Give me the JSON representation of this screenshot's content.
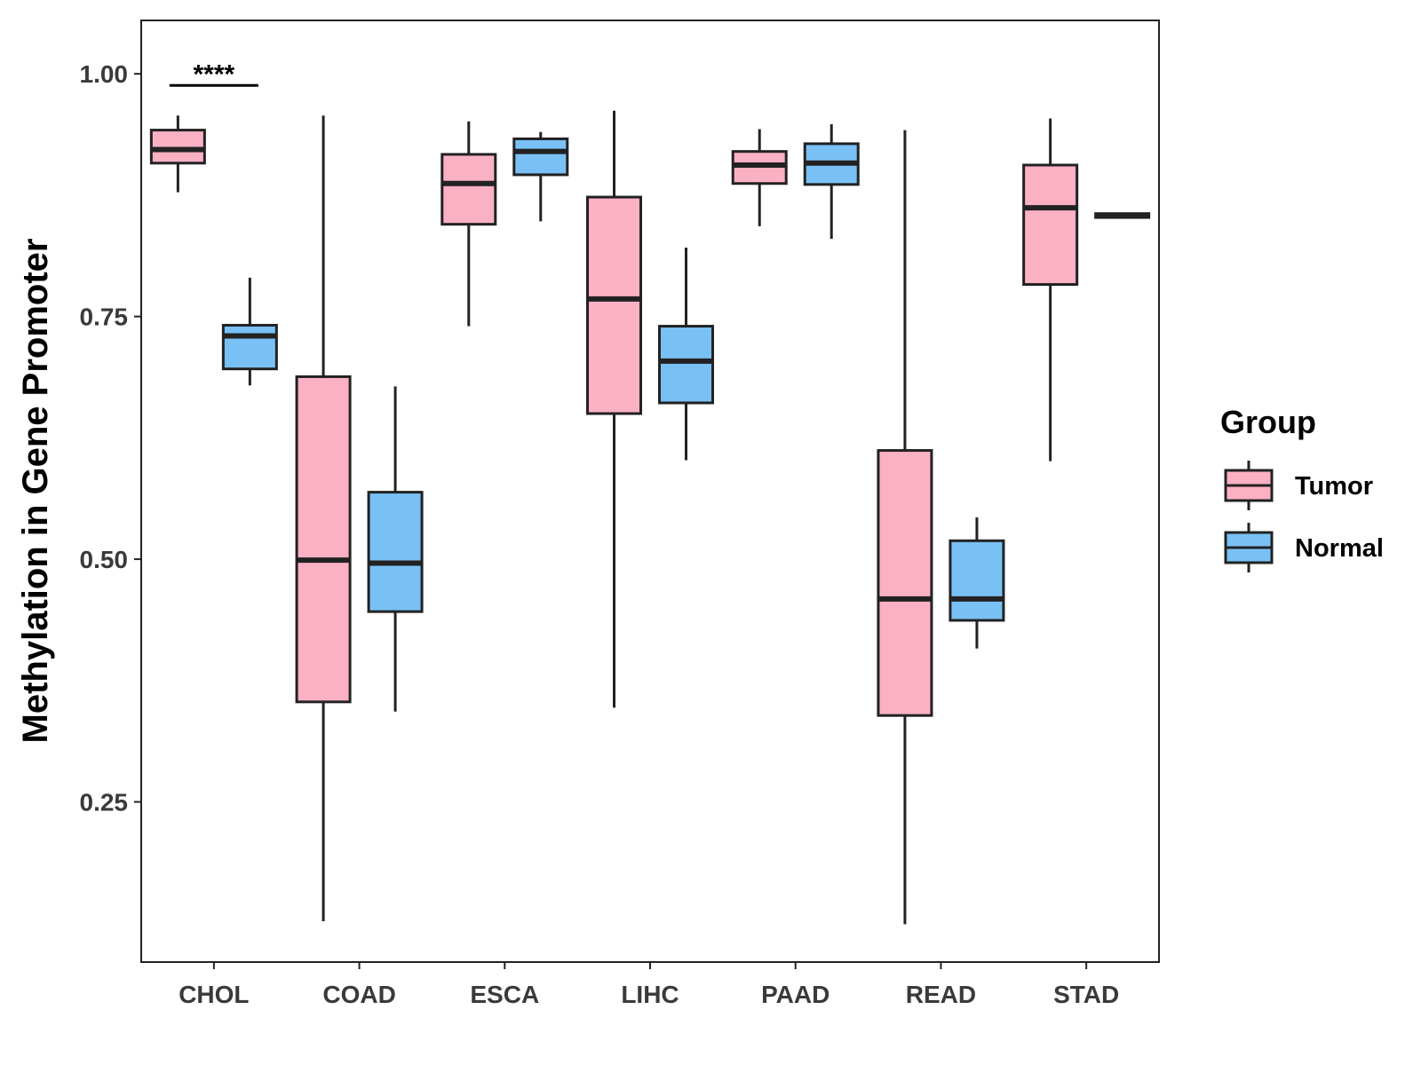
{
  "chart_data": {
    "type": "boxplot",
    "title": "",
    "xlabel": "",
    "ylabel": "Methylation in Gene Promoter",
    "ylim": [
      0.085,
      1.055
    ],
    "yticks": [
      0.25,
      0.5,
      0.75,
      1.0
    ],
    "ytick_labels": [
      "0.25",
      "0.50",
      "0.75",
      "1.00"
    ],
    "categories": [
      "CHOL",
      "COAD",
      "ESCA",
      "LIHC",
      "PAAD",
      "READ",
      "STAD"
    ],
    "legend": {
      "title": "Group",
      "position": "right",
      "entries": [
        {
          "name": "Tumor",
          "color": "#FBB1C4"
        },
        {
          "name": "Normal",
          "color": "#79C1F5"
        }
      ]
    },
    "series": [
      {
        "name": "Tumor",
        "color": "#FBB1C4",
        "boxes": [
          {
            "min": 0.878,
            "q1": 0.908,
            "median": 0.922,
            "q3": 0.942,
            "max": 0.957
          },
          {
            "min": 0.127,
            "q1": 0.353,
            "median": 0.499,
            "q3": 0.688,
            "max": 0.957
          },
          {
            "min": 0.74,
            "q1": 0.845,
            "median": 0.887,
            "q3": 0.917,
            "max": 0.951
          },
          {
            "min": 0.347,
            "q1": 0.65,
            "median": 0.768,
            "q3": 0.873,
            "max": 0.962
          },
          {
            "min": 0.843,
            "q1": 0.887,
            "median": 0.906,
            "q3": 0.92,
            "max": 0.943
          },
          {
            "min": 0.124,
            "q1": 0.339,
            "median": 0.459,
            "q3": 0.612,
            "max": 0.942
          },
          {
            "min": 0.601,
            "q1": 0.783,
            "median": 0.862,
            "q3": 0.906,
            "max": 0.954
          }
        ]
      },
      {
        "name": "Normal",
        "color": "#79C1F5",
        "boxes": [
          {
            "min": 0.679,
            "q1": 0.696,
            "median": 0.73,
            "q3": 0.741,
            "max": 0.79
          },
          {
            "min": 0.343,
            "q1": 0.446,
            "median": 0.496,
            "q3": 0.569,
            "max": 0.678
          },
          {
            "min": 0.848,
            "q1": 0.896,
            "median": 0.92,
            "q3": 0.933,
            "max": 0.94
          },
          {
            "min": 0.602,
            "q1": 0.661,
            "median": 0.704,
            "q3": 0.74,
            "max": 0.821
          },
          {
            "min": 0.83,
            "q1": 0.886,
            "median": 0.908,
            "q3": 0.928,
            "max": 0.948
          },
          {
            "min": 0.408,
            "q1": 0.437,
            "median": 0.459,
            "q3": 0.519,
            "max": 0.543
          },
          {
            "min": 0.852,
            "q1": 0.852,
            "median": 0.854,
            "q3": 0.856,
            "max": 0.856
          }
        ]
      }
    ],
    "annotations": [
      {
        "text": "****",
        "category": "CHOL",
        "y": 0.988
      }
    ],
    "grid": false
  }
}
